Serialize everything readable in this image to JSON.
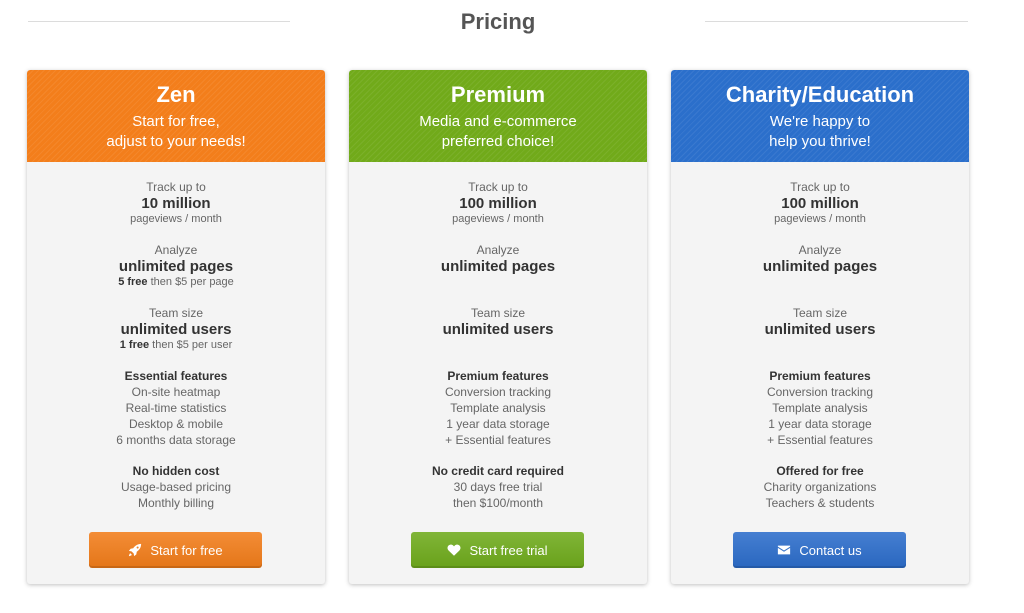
{
  "page": {
    "title": "Pricing"
  },
  "plans": [
    {
      "name": "Zen",
      "subtitle_line1": "Start for free,",
      "subtitle_line2": "adjust to your needs!",
      "color": "#f37e1b",
      "track": {
        "label": "Track up to",
        "value": "10 million",
        "note": "pageviews / month"
      },
      "analyze": {
        "label": "Analyze",
        "value": "unlimited pages",
        "note_bold": "5 free",
        "note_rest": " then $5 per page"
      },
      "team": {
        "label": "Team size",
        "value": "unlimited users",
        "note_bold": "1 free",
        "note_rest": " then $5 per user"
      },
      "features": {
        "heading": "Essential features",
        "items": [
          "On-site heatmap",
          "Real-time statistics",
          "Desktop & mobile",
          "6 months data storage"
        ]
      },
      "extra": {
        "heading": "No hidden cost",
        "items": [
          "Usage-based pricing",
          "Monthly billing"
        ]
      },
      "button": {
        "label": "Start for free",
        "icon": "rocket-icon",
        "color": "#f27d1a"
      }
    },
    {
      "name": "Premium",
      "subtitle_line1": "Media and e-commerce",
      "subtitle_line2": "preferred choice!",
      "color": "#71aa1a",
      "track": {
        "label": "Track up to",
        "value": "100 million",
        "note": "pageviews / month"
      },
      "analyze": {
        "label": "Analyze",
        "value": "unlimited pages",
        "note_bold": "",
        "note_rest": ""
      },
      "team": {
        "label": "Team size",
        "value": "unlimited users",
        "note_bold": "",
        "note_rest": ""
      },
      "features": {
        "heading": "Premium features",
        "items": [
          "Conversion tracking",
          "Template analysis",
          "1 year data storage",
          "+ Essential features"
        ]
      },
      "extra": {
        "heading": "No credit card required",
        "items": [
          "30 days free trial",
          "then $100/month"
        ]
      },
      "button": {
        "label": "Start free trial",
        "icon": "heart-icon",
        "color": "#6fab1c"
      }
    },
    {
      "name": "Charity/Education",
      "subtitle_line1": "We're happy to",
      "subtitle_line2": "help you thrive!",
      "color": "#2b6fcb",
      "track": {
        "label": "Track up to",
        "value": "100 million",
        "note": "pageviews / month"
      },
      "analyze": {
        "label": "Analyze",
        "value": "unlimited pages",
        "note_bold": "",
        "note_rest": ""
      },
      "team": {
        "label": "Team size",
        "value": "unlimited users",
        "note_bold": "",
        "note_rest": ""
      },
      "features": {
        "heading": "Premium features",
        "items": [
          "Conversion tracking",
          "Template analysis",
          "1 year data storage",
          "+ Essential features"
        ]
      },
      "extra": {
        "heading": "Offered for free",
        "items": [
          "Charity organizations",
          "Teachers & students"
        ]
      },
      "button": {
        "label": "Contact us",
        "icon": "envelope-icon",
        "color": "#2c6dcb"
      }
    }
  ]
}
